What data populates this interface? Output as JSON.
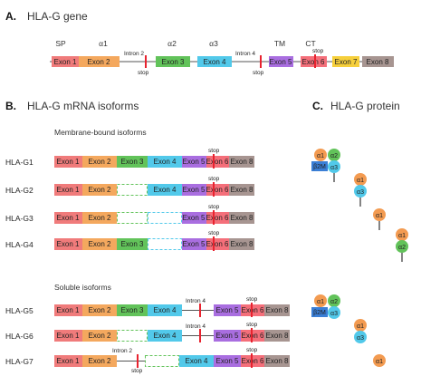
{
  "colors": {
    "exon1": "#f07b7b",
    "exon2": "#f4a85e",
    "exon3": "#62c35a",
    "exon4": "#52c9ea",
    "exon5": "#a96ee0",
    "exon6": "#f46f7a",
    "exon7": "#f6cf3b",
    "exon8": "#a79591",
    "stop": "#e8232f",
    "a1_ball": "#f39b51",
    "a2_ball": "#62c35a",
    "a3_ball": "#52c9ea",
    "b2m_box": "#3b7fd6",
    "deleted_outline_exon3": "#62c35a",
    "deleted_outline_exon4": "#52c9ea"
  },
  "sectionA": {
    "letter": "A.",
    "title": "HLA-G gene",
    "domains": [
      "SP",
      "α1",
      "α2",
      "α3",
      "TM",
      "CT"
    ],
    "exons": [
      "Exon 1",
      "Exon 2",
      "Exon 3",
      "Exon 4",
      "Exon 5",
      "Exon 6",
      "Exon 7",
      "Exon 8"
    ],
    "intron2": "Intron 2",
    "intron4": "Intron 4",
    "stop_labels": [
      "stop",
      "stop",
      "stop"
    ]
  },
  "sectionB": {
    "letter": "B.",
    "title": "HLA-G mRNA isoforms",
    "membrane_title": "Membrane-bound isoforms",
    "soluble_title": "Soluble isoforms",
    "isoforms": [
      "HLA-G1",
      "HLA-G2",
      "HLA-G3",
      "HLA-G4",
      "HLA-G5",
      "HLA-G6",
      "HLA-G7"
    ],
    "exons": [
      "Exon 1",
      "Exon 2",
      "Exon 3",
      "Exon 4",
      "Exon 5",
      "Exon 6",
      "Exon 8"
    ],
    "stop": "stop",
    "intron4": "Intron 4",
    "intron2": "Intron 2"
  },
  "sectionC": {
    "letter": "C.",
    "title": "HLA-G protein",
    "a1": "α1",
    "a2": "α2",
    "a3": "α3",
    "b2m": "β2M"
  }
}
